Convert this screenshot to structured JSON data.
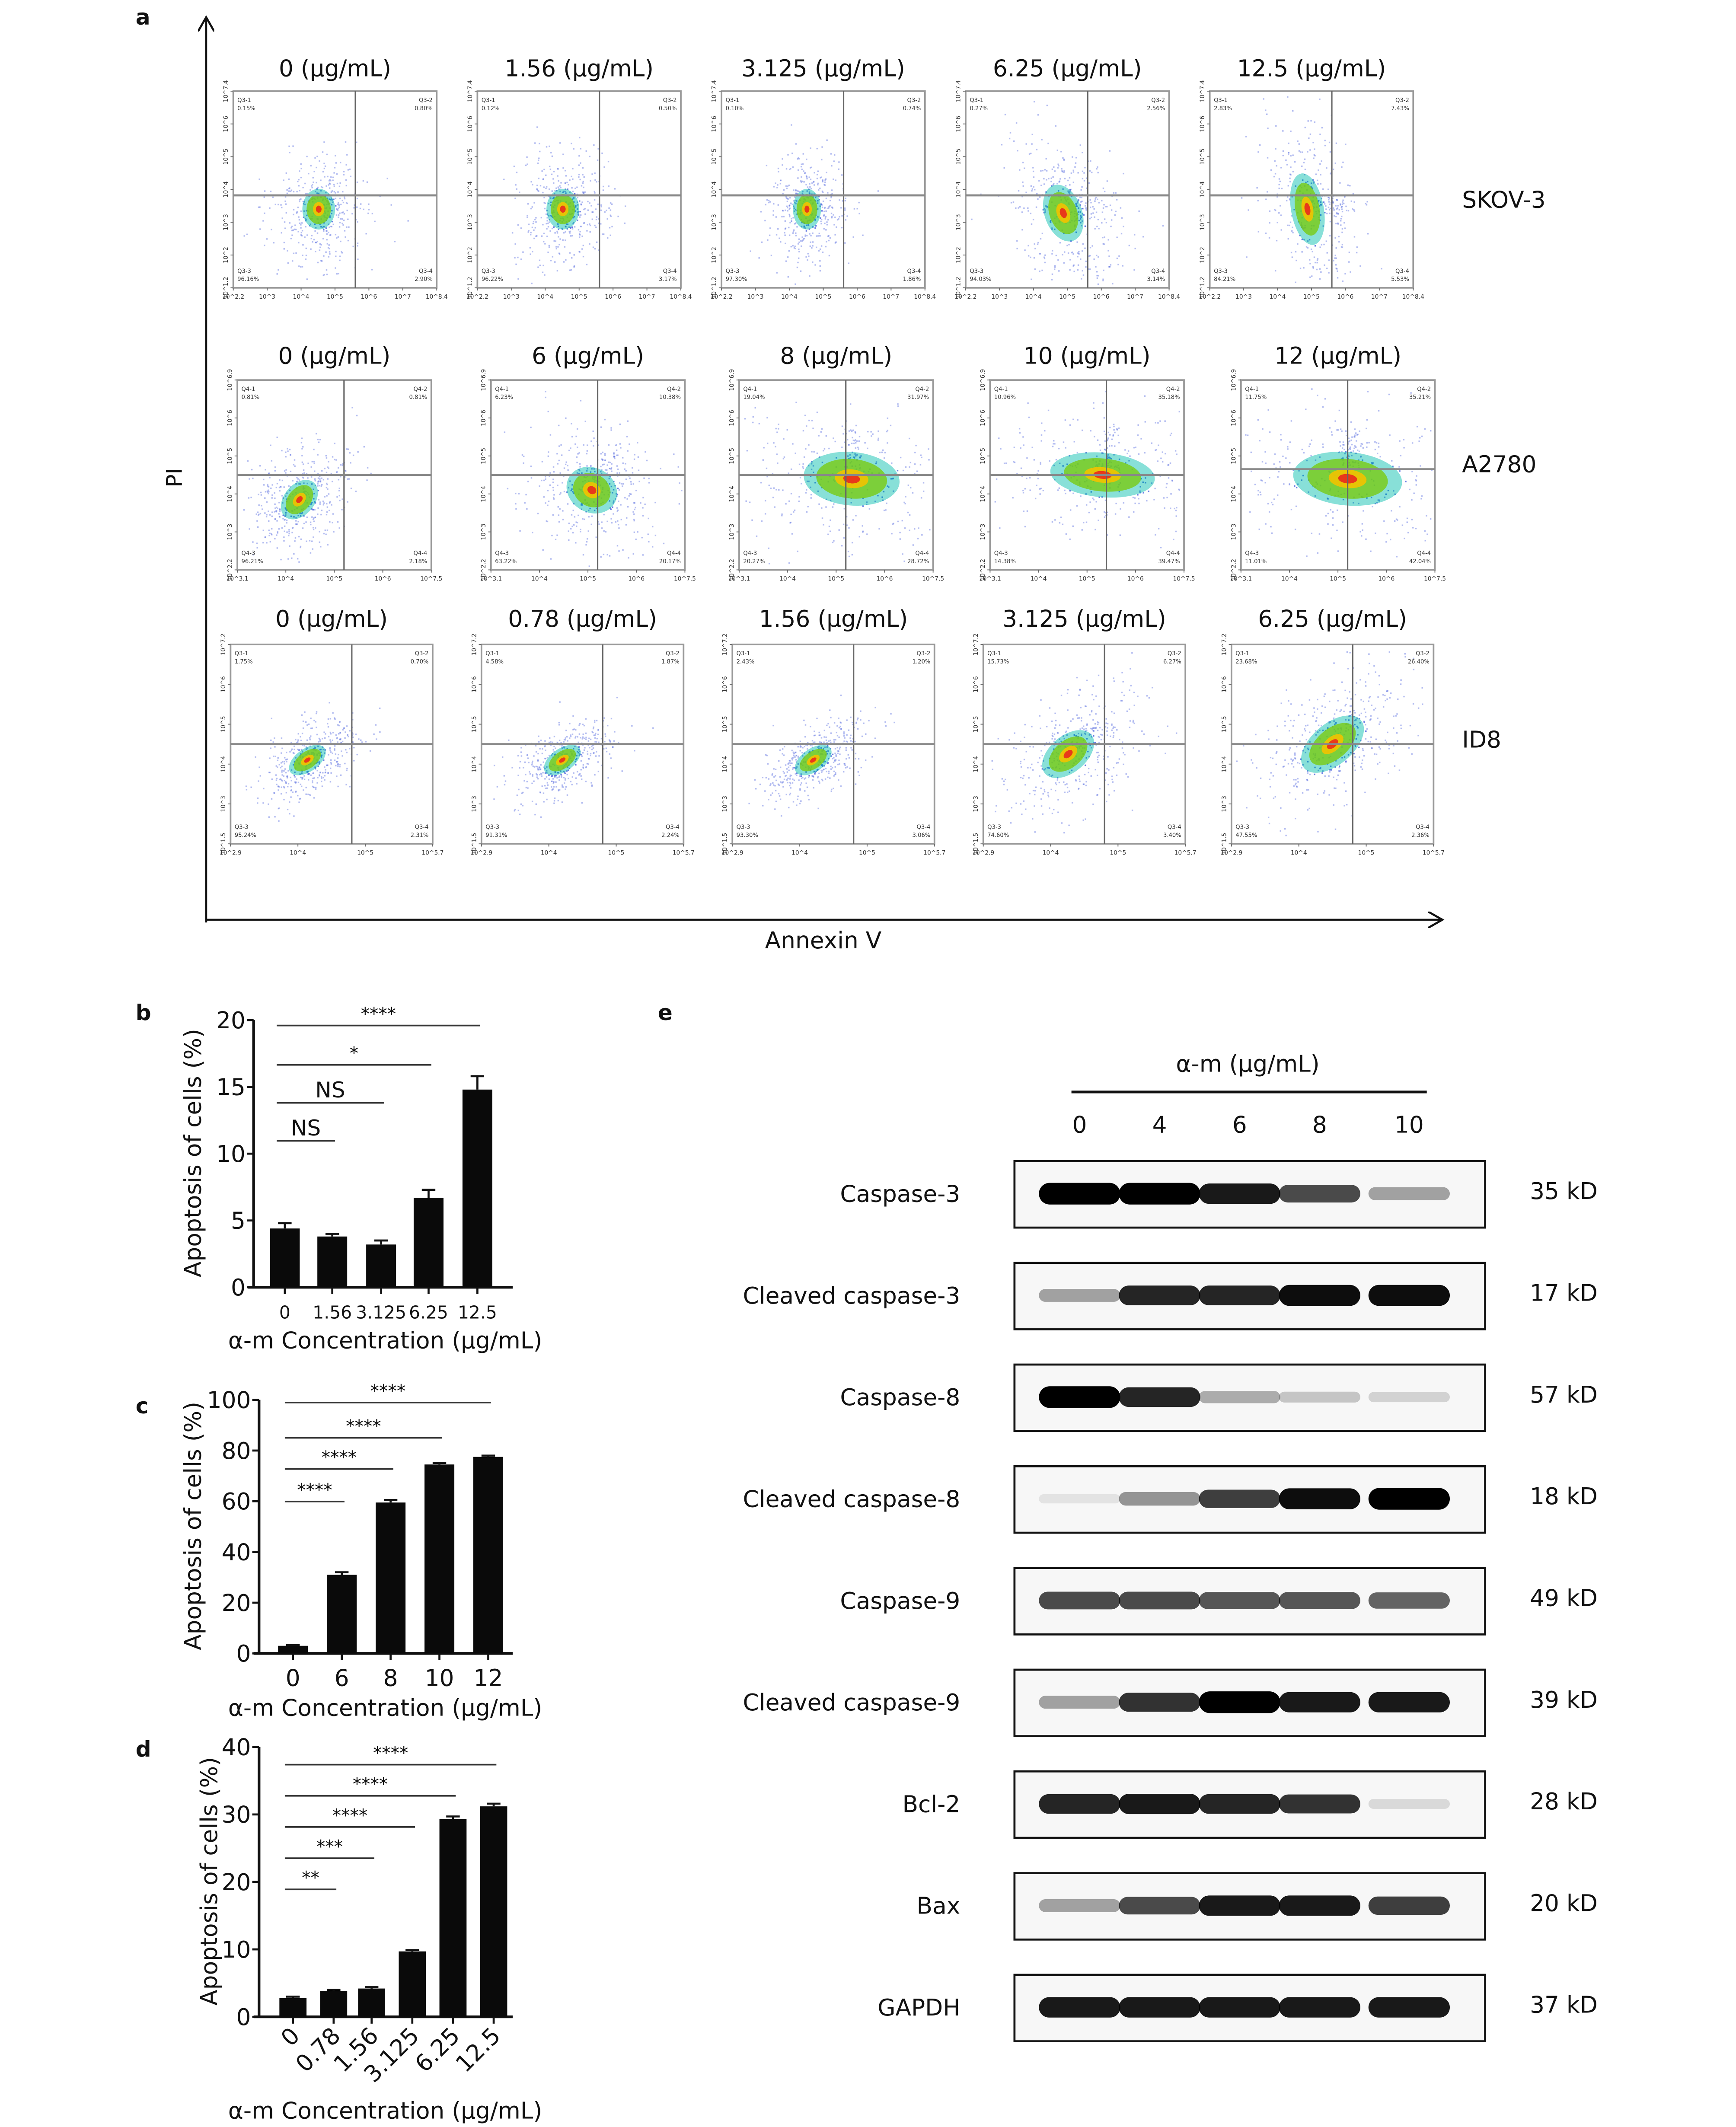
{
  "panel_labels": {
    "a": "a",
    "b": "b",
    "c": "c",
    "d": "d",
    "e": "e"
  },
  "panel_a": {
    "y_axis_label": "PI",
    "x_axis_label": "Annexin V",
    "rows": [
      {
        "cell_line": "SKOV-3",
        "quadrant_names": [
          "Q3-1",
          "Q3-2",
          "Q3-3",
          "Q3-4"
        ],
        "x_ticks": [
          "10^2.2",
          "10^3",
          "10^4",
          "10^5",
          "10^6",
          "10^7",
          "10^8.4"
        ],
        "y_ticks": [
          "10^1.2",
          "10^2",
          "10^3",
          "10^4",
          "10^5",
          "10^6",
          "10^7.4"
        ],
        "plots": [
          {
            "title": "0 (μg/mL)",
            "q1": "0.15%",
            "q2": "0.80%",
            "q3": "96.16%",
            "q4": "2.90%"
          },
          {
            "title": "1.56 (μg/mL)",
            "q1": "0.12%",
            "q2": "0.50%",
            "q3": "96.22%",
            "q4": "3.17%"
          },
          {
            "title": "3.125 (μg/mL)",
            "q1": "0.10%",
            "q2": "0.74%",
            "q3": "97.30%",
            "q4": "1.86%"
          },
          {
            "title": "6.25 (μg/mL)",
            "q1": "0.27%",
            "q2": "2.56%",
            "q3": "94.03%",
            "q4": "3.14%"
          },
          {
            "title": "12.5 (μg/mL)",
            "q1": "2.83%",
            "q2": "7.43%",
            "q3": "84.21%",
            "q4": "5.53%"
          }
        ]
      },
      {
        "cell_line": "A2780",
        "quadrant_names": [
          "Q4-1",
          "Q4-2",
          "Q4-3",
          "Q4-4"
        ],
        "x_ticks": [
          "10^3.1",
          "10^4",
          "10^5",
          "10^6",
          "10^7.5"
        ],
        "y_ticks": [
          "10^2.2",
          "10^3",
          "10^4",
          "10^5",
          "10^6",
          "10^6.9"
        ],
        "plots": [
          {
            "title": "0 (μg/mL)",
            "q1": "0.81%",
            "q2": "0.81%",
            "q3": "96.21%",
            "q4": "2.18%"
          },
          {
            "title": "6 (μg/mL)",
            "q1": "6.23%",
            "q2": "10.38%",
            "q3": "63.22%",
            "q4": "20.17%"
          },
          {
            "title": "8 (μg/mL)",
            "q1": "19.04%",
            "q2": "31.97%",
            "q3": "20.27%",
            "q4": "28.72%"
          },
          {
            "title": "10 (μg/mL)",
            "q1": "10.96%",
            "q2": "35.18%",
            "q3": "14.38%",
            "q4": "39.47%"
          },
          {
            "title": "12 (μg/mL)",
            "q1": "11.75%",
            "q2": "35.21%",
            "q3": "11.01%",
            "q4": "42.04%"
          }
        ]
      },
      {
        "cell_line": "ID8",
        "quadrant_names": [
          "Q3-1",
          "Q3-2",
          "Q3-3",
          "Q3-4"
        ],
        "x_ticks": [
          "10^2.9",
          "10^4",
          "10^5",
          "10^5.7"
        ],
        "y_ticks": [
          "10^1.5",
          "10^3",
          "10^4",
          "10^5",
          "10^6",
          "10^7.2"
        ],
        "plots": [
          {
            "title": "0 (μg/mL)",
            "q1": "1.75%",
            "q2": "0.70%",
            "q3": "95.24%",
            "q4": "2.31%"
          },
          {
            "title": "0.78 (μg/mL)",
            "q1": "4.58%",
            "q2": "1.87%",
            "q3": "91.31%",
            "q4": "2.24%"
          },
          {
            "title": "1.56 (μg/mL)",
            "q1": "2.43%",
            "q2": "1.20%",
            "q3": "93.30%",
            "q4": "3.06%"
          },
          {
            "title": "3.125 (μg/mL)",
            "q1": "15.73%",
            "q2": "6.27%",
            "q3": "74.60%",
            "q4": "3.40%"
          },
          {
            "title": "6.25 (μg/mL)",
            "q1": "23.68%",
            "q2": "26.40%",
            "q3": "47.55%",
            "q4": "2.36%"
          }
        ]
      }
    ]
  },
  "chart_data": [
    {
      "panel": "b",
      "type": "bar",
      "categories": [
        "0",
        "1.56",
        "3.125",
        "6.25",
        "12.5"
      ],
      "values": [
        4.4,
        3.8,
        3.2,
        6.7,
        14.8
      ],
      "errors": [
        0.4,
        0.2,
        0.3,
        0.6,
        1.0
      ],
      "xlabel": "α-m Concentration (μg/mL)",
      "ylabel": "Apoptosis of cells (%)",
      "ylim": [
        0,
        20
      ],
      "yticks": [
        "0",
        "5",
        "10",
        "15",
        "20"
      ],
      "significance": [
        {
          "label": "****",
          "from": "0",
          "to": "12.5"
        },
        {
          "label": "*",
          "from": "0",
          "to": "6.25"
        },
        {
          "label": "NS",
          "from": "0",
          "to": "3.125"
        },
        {
          "label": "NS",
          "from": "0",
          "to": "1.56"
        }
      ]
    },
    {
      "panel": "c",
      "type": "bar",
      "categories": [
        "0",
        "6",
        "8",
        "10",
        "12"
      ],
      "values": [
        3,
        31,
        59.5,
        74.5,
        77.5
      ],
      "errors": [
        0.3,
        1.0,
        1.0,
        0.6,
        0.5
      ],
      "xlabel": "α-m Concentration (μg/mL)",
      "ylabel": "Apoptosis of cells (%)",
      "ylim": [
        0,
        100
      ],
      "yticks": [
        "0",
        "20",
        "40",
        "60",
        "80",
        "100"
      ],
      "significance": [
        {
          "label": "****",
          "from": "0",
          "to": "12"
        },
        {
          "label": "****",
          "from": "0",
          "to": "10"
        },
        {
          "label": "****",
          "from": "0",
          "to": "8"
        },
        {
          "label": "****",
          "from": "0",
          "to": "6"
        }
      ]
    },
    {
      "panel": "d",
      "type": "bar",
      "categories": [
        "0",
        "0.78",
        "1.56",
        "3.125",
        "6.25",
        "12.5"
      ],
      "values": [
        2.8,
        3.8,
        4.2,
        9.7,
        29.3,
        31.2
      ],
      "errors": [
        0.2,
        0.2,
        0.2,
        0.2,
        0.4,
        0.4
      ],
      "xlabel": "α-m Concentration (μg/mL)",
      "ylabel": "Apoptosis of cells (%)",
      "ylim": [
        0,
        40
      ],
      "yticks": [
        "0",
        "10",
        "20",
        "30",
        "40"
      ],
      "significance": [
        {
          "label": "****",
          "from": "0",
          "to": "12.5"
        },
        {
          "label": "****",
          "from": "0",
          "to": "6.25"
        },
        {
          "label": "****",
          "from": "0",
          "to": "3.125"
        },
        {
          "label": "***",
          "from": "0",
          "to": "1.56"
        },
        {
          "label": "**",
          "from": "0",
          "to": "0.78"
        }
      ]
    }
  ],
  "panel_e": {
    "treatment_label": "α-m (μg/mL)",
    "lanes": [
      "0",
      "4",
      "6",
      "8",
      "10"
    ],
    "blots": [
      {
        "protein": "Caspase-3",
        "size": "35 kD",
        "band_intensity": [
          1,
          1,
          0.9,
          0.7,
          0.35
        ]
      },
      {
        "protein": "Cleaved caspase-3",
        "size": "17 kD",
        "band_intensity": [
          0.35,
          0.85,
          0.85,
          0.95,
          0.95
        ]
      },
      {
        "protein": "Caspase-8",
        "size": "57 kD",
        "band_intensity": [
          1,
          0.85,
          0.3,
          0.2,
          0.15
        ]
      },
      {
        "protein": "Cleaved caspase-8",
        "size": "18 kD",
        "band_intensity": [
          0.08,
          0.4,
          0.75,
          0.95,
          1
        ]
      },
      {
        "protein": "Caspase-9",
        "size": "49 kD",
        "band_intensity": [
          0.7,
          0.7,
          0.65,
          0.65,
          0.6
        ]
      },
      {
        "protein": "Cleaved caspase-9",
        "size": "39 kD",
        "band_intensity": [
          0.35,
          0.8,
          1,
          0.9,
          0.9
        ]
      },
      {
        "protein": "Bcl-2",
        "size": "28 kD",
        "band_intensity": [
          0.85,
          0.9,
          0.85,
          0.8,
          0.12
        ]
      },
      {
        "protein": "Bax",
        "size": "20 kD",
        "band_intensity": [
          0.35,
          0.7,
          0.9,
          0.9,
          0.75
        ]
      },
      {
        "protein": "GAPDH",
        "size": "37 kD",
        "band_intensity": [
          0.9,
          0.9,
          0.9,
          0.9,
          0.9
        ]
      }
    ]
  }
}
